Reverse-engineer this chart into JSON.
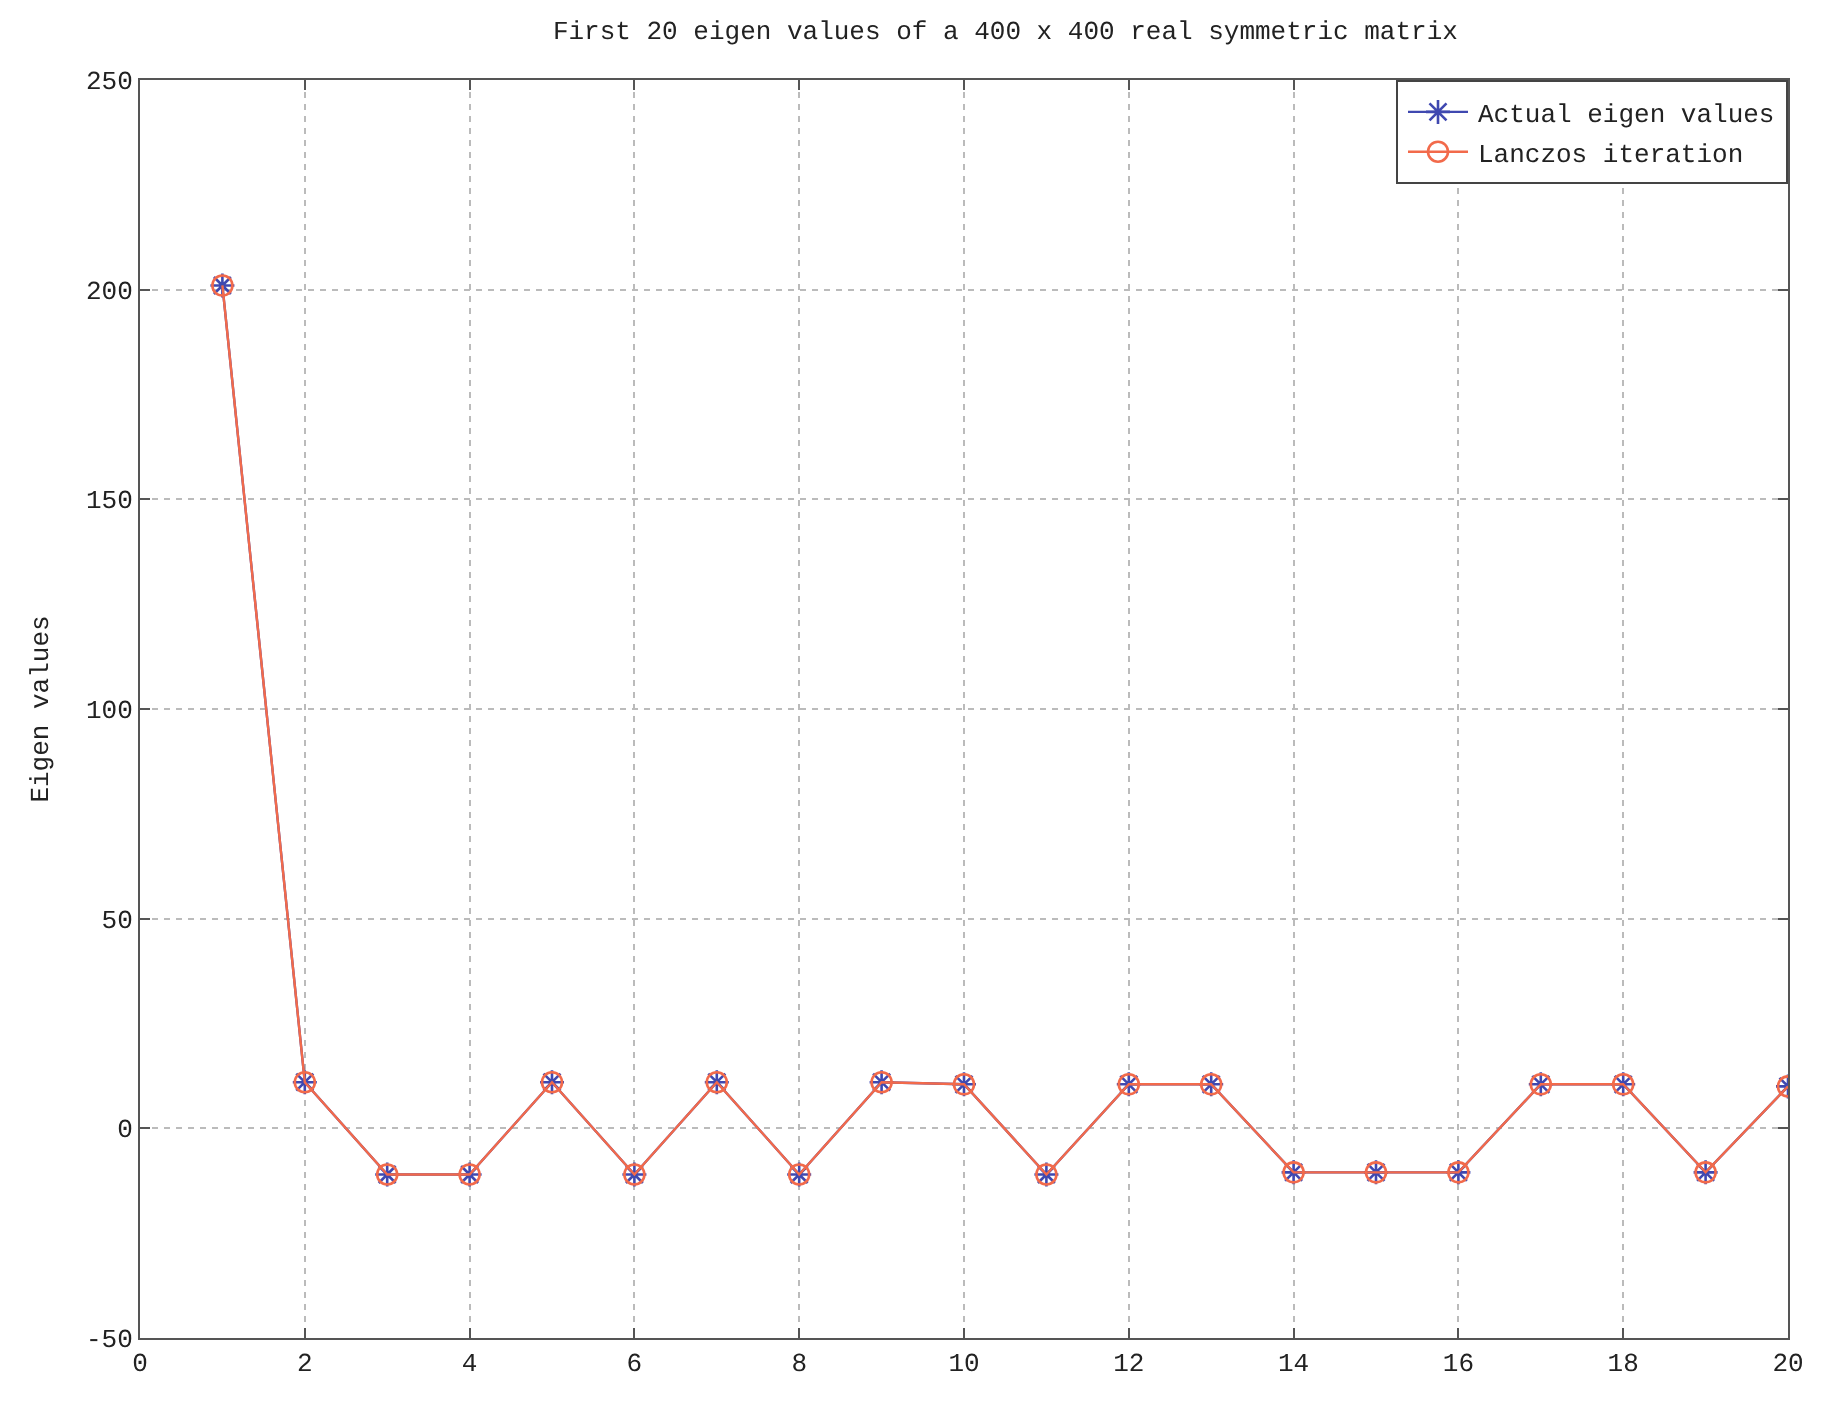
{
  "chart_data": {
    "type": "line",
    "title": "First 20 eigen values of a 400 x 400 real symmetric matrix",
    "ylabel": "Eigen values",
    "x": [
      1,
      2,
      3,
      4,
      5,
      6,
      7,
      8,
      9,
      10,
      11,
      12,
      13,
      14,
      15,
      16,
      17,
      18,
      19,
      20
    ],
    "series": [
      {
        "name": "Actual eigen values",
        "color": "#3f48b0",
        "marker": "cross",
        "values": [
          201,
          11,
          -11,
          -11,
          11,
          -11,
          11,
          -11,
          11,
          10.5,
          -11,
          10.5,
          10.5,
          -10.5,
          -10.5,
          -10.5,
          10.5,
          10.5,
          -10.5,
          10
        ]
      },
      {
        "name": "Lanczos iteration",
        "color": "#f26a4b",
        "marker": "circle",
        "values": [
          201,
          11,
          -11,
          -11,
          11,
          -11,
          11,
          -11,
          11,
          10.5,
          -11,
          10.5,
          10.5,
          -10.5,
          -10.5,
          -10.5,
          10.5,
          10.5,
          -10.5,
          10
        ]
      }
    ],
    "xlim": [
      0,
      20
    ],
    "xticks": [
      0,
      2,
      4,
      6,
      8,
      10,
      12,
      14,
      16,
      18,
      20
    ],
    "ylim": [
      -50,
      250
    ],
    "yticks": [
      -50,
      0,
      50,
      100,
      150,
      200,
      250
    ],
    "grid": true,
    "legend": "top right",
    "line_style": "solid"
  }
}
